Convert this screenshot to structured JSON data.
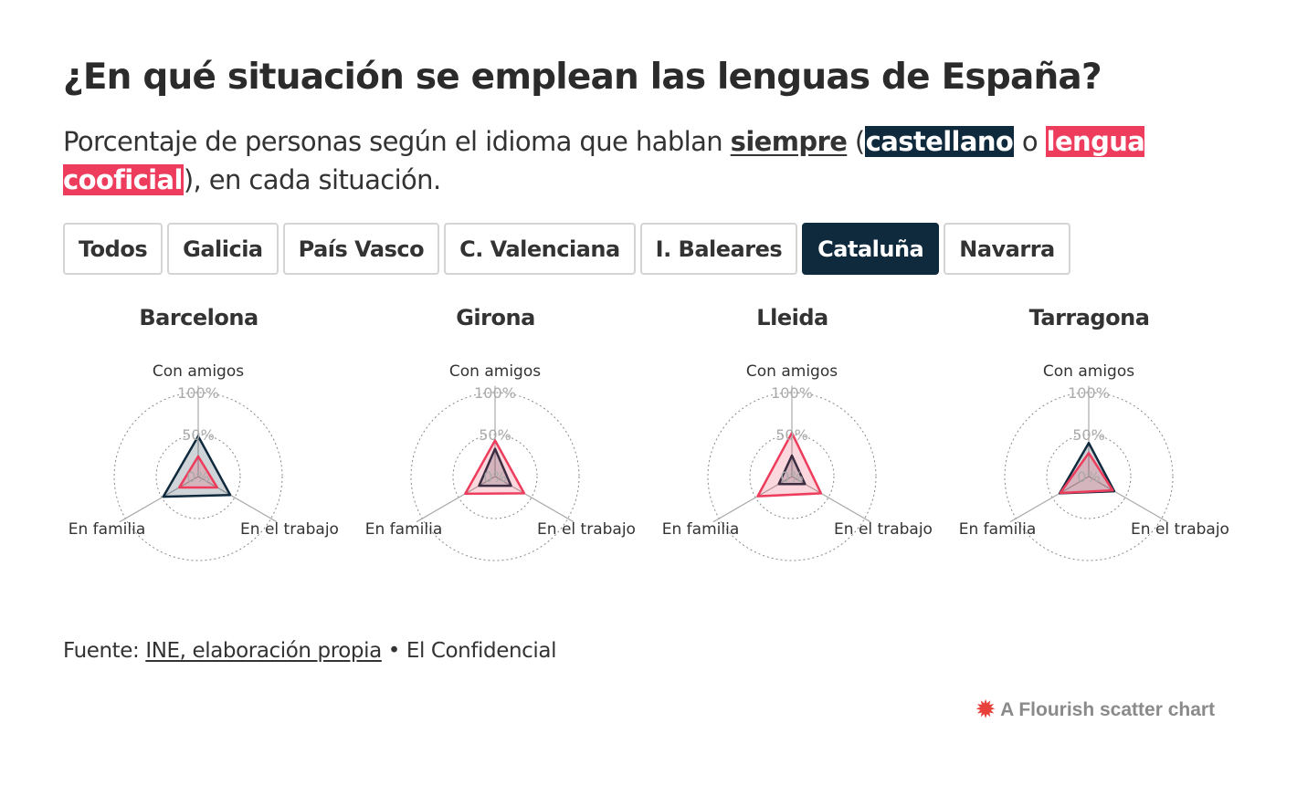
{
  "title": "¿En qué situación se emplean las lenguas de España?",
  "subtitle": {
    "before": "Porcentaje de personas según el idioma que hablan ",
    "strong": "siempre",
    "open": " (",
    "castellano": "castellano",
    "or": " o ",
    "cooficial": "lengua cooficial",
    "after": "), en cada situación."
  },
  "tabs": [
    {
      "label": "Todos",
      "active": false
    },
    {
      "label": "Galicia",
      "active": false
    },
    {
      "label": "País Vasco",
      "active": false
    },
    {
      "label": "C. Valenciana",
      "active": false
    },
    {
      "label": "I. Baleares",
      "active": false
    },
    {
      "label": "Cataluña",
      "active": true
    },
    {
      "label": "Navarra",
      "active": false
    }
  ],
  "chart_data": {
    "type": "radar",
    "axes": [
      "Con amigos",
      "En el trabajo",
      "En familia"
    ],
    "radial_ticks": [
      "0%",
      "50%",
      "100%"
    ],
    "range": [
      0,
      100
    ],
    "series_colors": {
      "castellano": "#0f2a3d",
      "cooficial": "#ed3c5c"
    },
    "panels": [
      {
        "title": "Barcelona",
        "series": [
          {
            "key": "castellano",
            "values": [
              48,
              44,
              48
            ]
          },
          {
            "key": "cooficial",
            "values": [
              24,
              26,
              26
            ]
          }
        ]
      },
      {
        "title": "Girona",
        "series": [
          {
            "key": "castellano",
            "values": [
              33,
              22,
              22
            ]
          },
          {
            "key": "cooficial",
            "values": [
              43,
              40,
              41
            ]
          }
        ]
      },
      {
        "title": "Lleida",
        "series": [
          {
            "key": "castellano",
            "values": [
              25,
              18,
              18
            ]
          },
          {
            "key": "cooficial",
            "values": [
              52,
              40,
              47
            ]
          }
        ]
      },
      {
        "title": "Tarragona",
        "series": [
          {
            "key": "castellano",
            "values": [
              40,
              35,
              40
            ]
          },
          {
            "key": "cooficial",
            "values": [
              28,
              33,
              39
            ]
          }
        ]
      }
    ]
  },
  "source": {
    "prefix": "Fuente: ",
    "link": "INE, elaboración propia",
    "suffix": " • El Confidencial"
  },
  "credit": {
    "icon": "flourish-logo-icon",
    "label": "A Flourish scatter chart"
  }
}
